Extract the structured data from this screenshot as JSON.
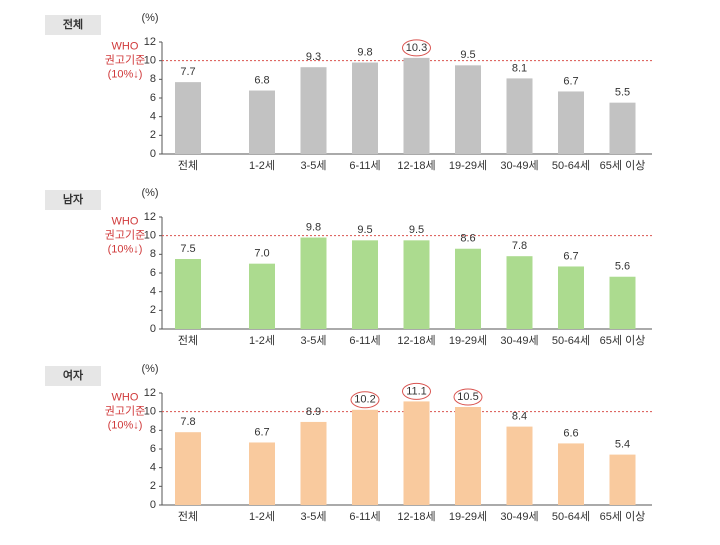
{
  "chart_data": [
    {
      "type": "bar",
      "panel_label": "전체",
      "y_unit": "(%)",
      "reference_line": 10,
      "annotation": [
        "WHO",
        "권고기준",
        "(10%↓)"
      ],
      "categories": [
        "전체",
        "1-2세",
        "3-5세",
        "6-11세",
        "12-18세",
        "19-29세",
        "30-49세",
        "50-64세",
        "65세 이상"
      ],
      "values": [
        7.7,
        6.8,
        9.3,
        9.8,
        10.3,
        9.5,
        8.1,
        6.7,
        5.5
      ],
      "color": "#c2c2c2",
      "ylim": [
        0,
        12
      ],
      "yticks": [
        0,
        2,
        4,
        6,
        8,
        10,
        12
      ]
    },
    {
      "type": "bar",
      "panel_label": "남자",
      "y_unit": "(%)",
      "reference_line": 10,
      "annotation": [
        "WHO",
        "권고기준",
        "(10%↓)"
      ],
      "categories": [
        "전체",
        "1-2세",
        "3-5세",
        "6-11세",
        "12-18세",
        "19-29세",
        "30-49세",
        "50-64세",
        "65세 이상"
      ],
      "values": [
        7.5,
        7.0,
        9.8,
        9.5,
        9.5,
        8.6,
        7.8,
        6.7,
        5.6
      ],
      "value_labels": [
        "7.5",
        "7.0",
        "9.8",
        "9.5",
        "9.5",
        "8.6",
        "7.8",
        "6.7",
        "5.6"
      ],
      "color": "#acdb8f",
      "ylim": [
        0,
        12
      ],
      "yticks": [
        0,
        2,
        4,
        6,
        8,
        10,
        12
      ]
    },
    {
      "type": "bar",
      "panel_label": "여자",
      "y_unit": "(%)",
      "reference_line": 10,
      "annotation": [
        "WHO",
        "권고기준",
        "(10%↓)"
      ],
      "categories": [
        "전체",
        "1-2세",
        "3-5세",
        "6-11세",
        "12-18세",
        "19-29세",
        "30-49세",
        "50-64세",
        "65세 이상"
      ],
      "values": [
        7.8,
        6.7,
        8.9,
        10.2,
        11.1,
        10.5,
        8.4,
        6.6,
        5.4
      ],
      "color": "#f9ca9e",
      "ylim": [
        0,
        12
      ],
      "yticks": [
        0,
        2,
        4,
        6,
        8,
        10,
        12
      ]
    }
  ]
}
